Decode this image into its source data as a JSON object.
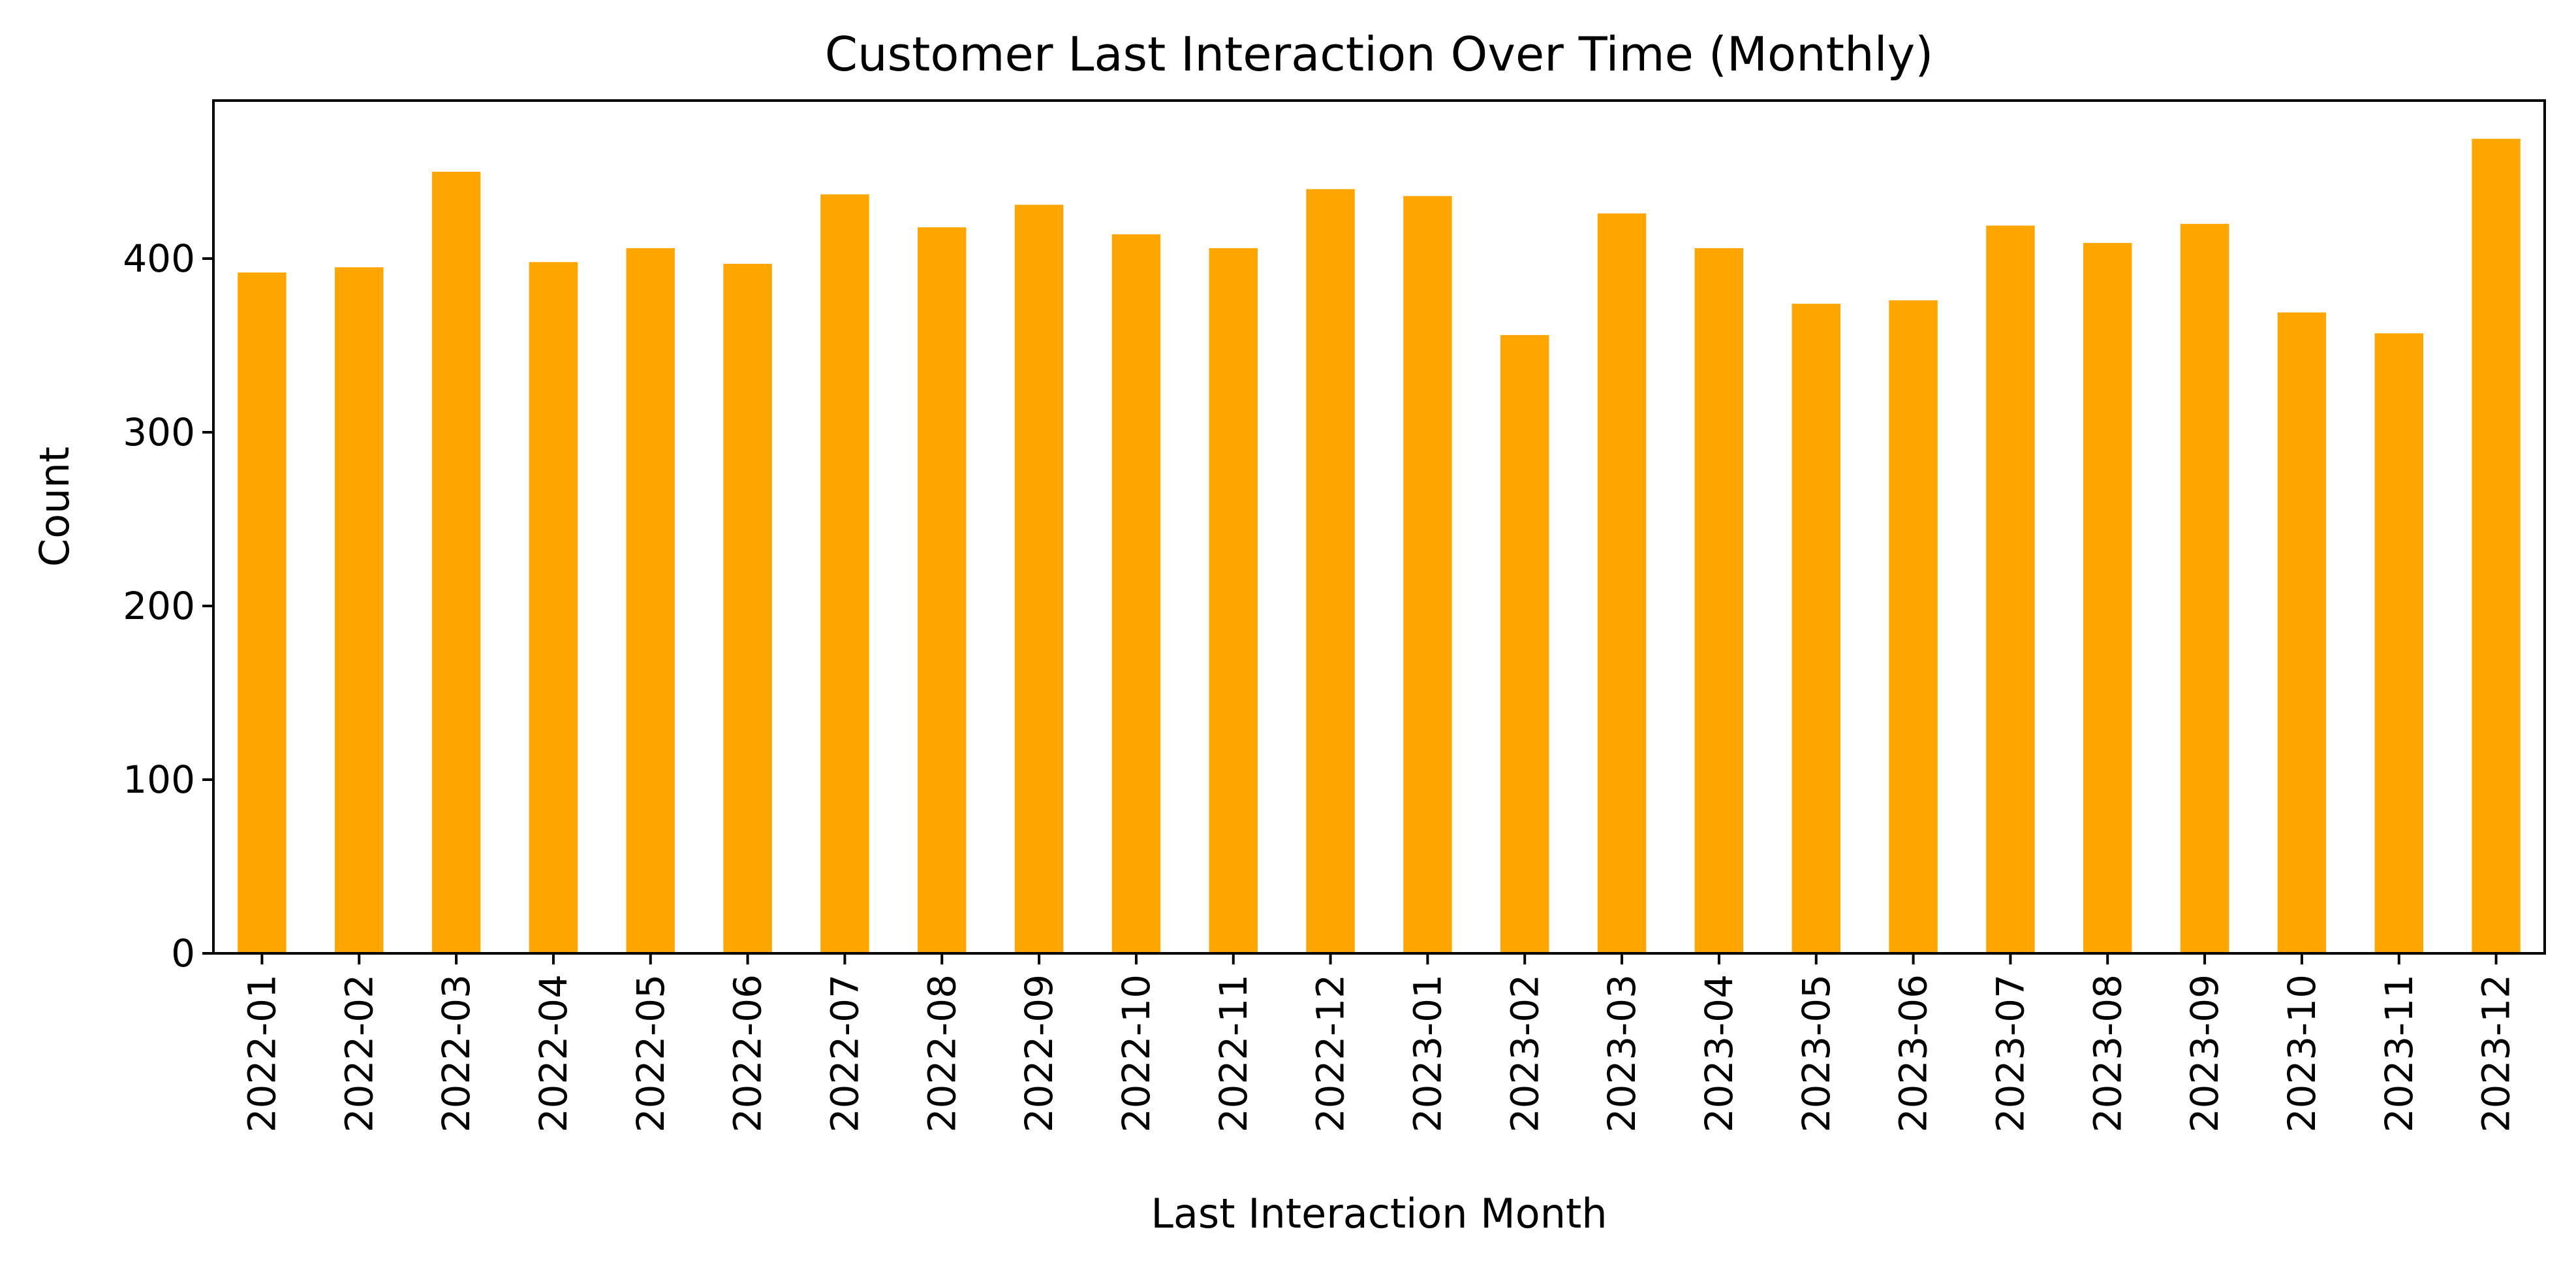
{
  "chart_data": {
    "type": "bar",
    "title": "Customer Last Interaction Over Time (Monthly)",
    "xlabel": "Last Interaction Month",
    "ylabel": "Count",
    "categories": [
      "2022-01",
      "2022-02",
      "2022-03",
      "2022-04",
      "2022-05",
      "2022-06",
      "2022-07",
      "2022-08",
      "2022-09",
      "2022-10",
      "2022-11",
      "2022-12",
      "2023-01",
      "2023-02",
      "2023-03",
      "2023-04",
      "2023-05",
      "2023-06",
      "2023-07",
      "2023-08",
      "2023-09",
      "2023-10",
      "2023-11",
      "2023-12"
    ],
    "values": [
      392,
      395,
      450,
      398,
      406,
      397,
      437,
      418,
      431,
      414,
      406,
      440,
      436,
      356,
      426,
      406,
      374,
      376,
      419,
      409,
      420,
      369,
      357,
      469
    ],
    "ylim": [
      0,
      491
    ],
    "yticks": [
      "0",
      "100",
      "200",
      "300",
      "400"
    ],
    "bar_color": "#FFA500",
    "grid": false,
    "legend": "none"
  }
}
